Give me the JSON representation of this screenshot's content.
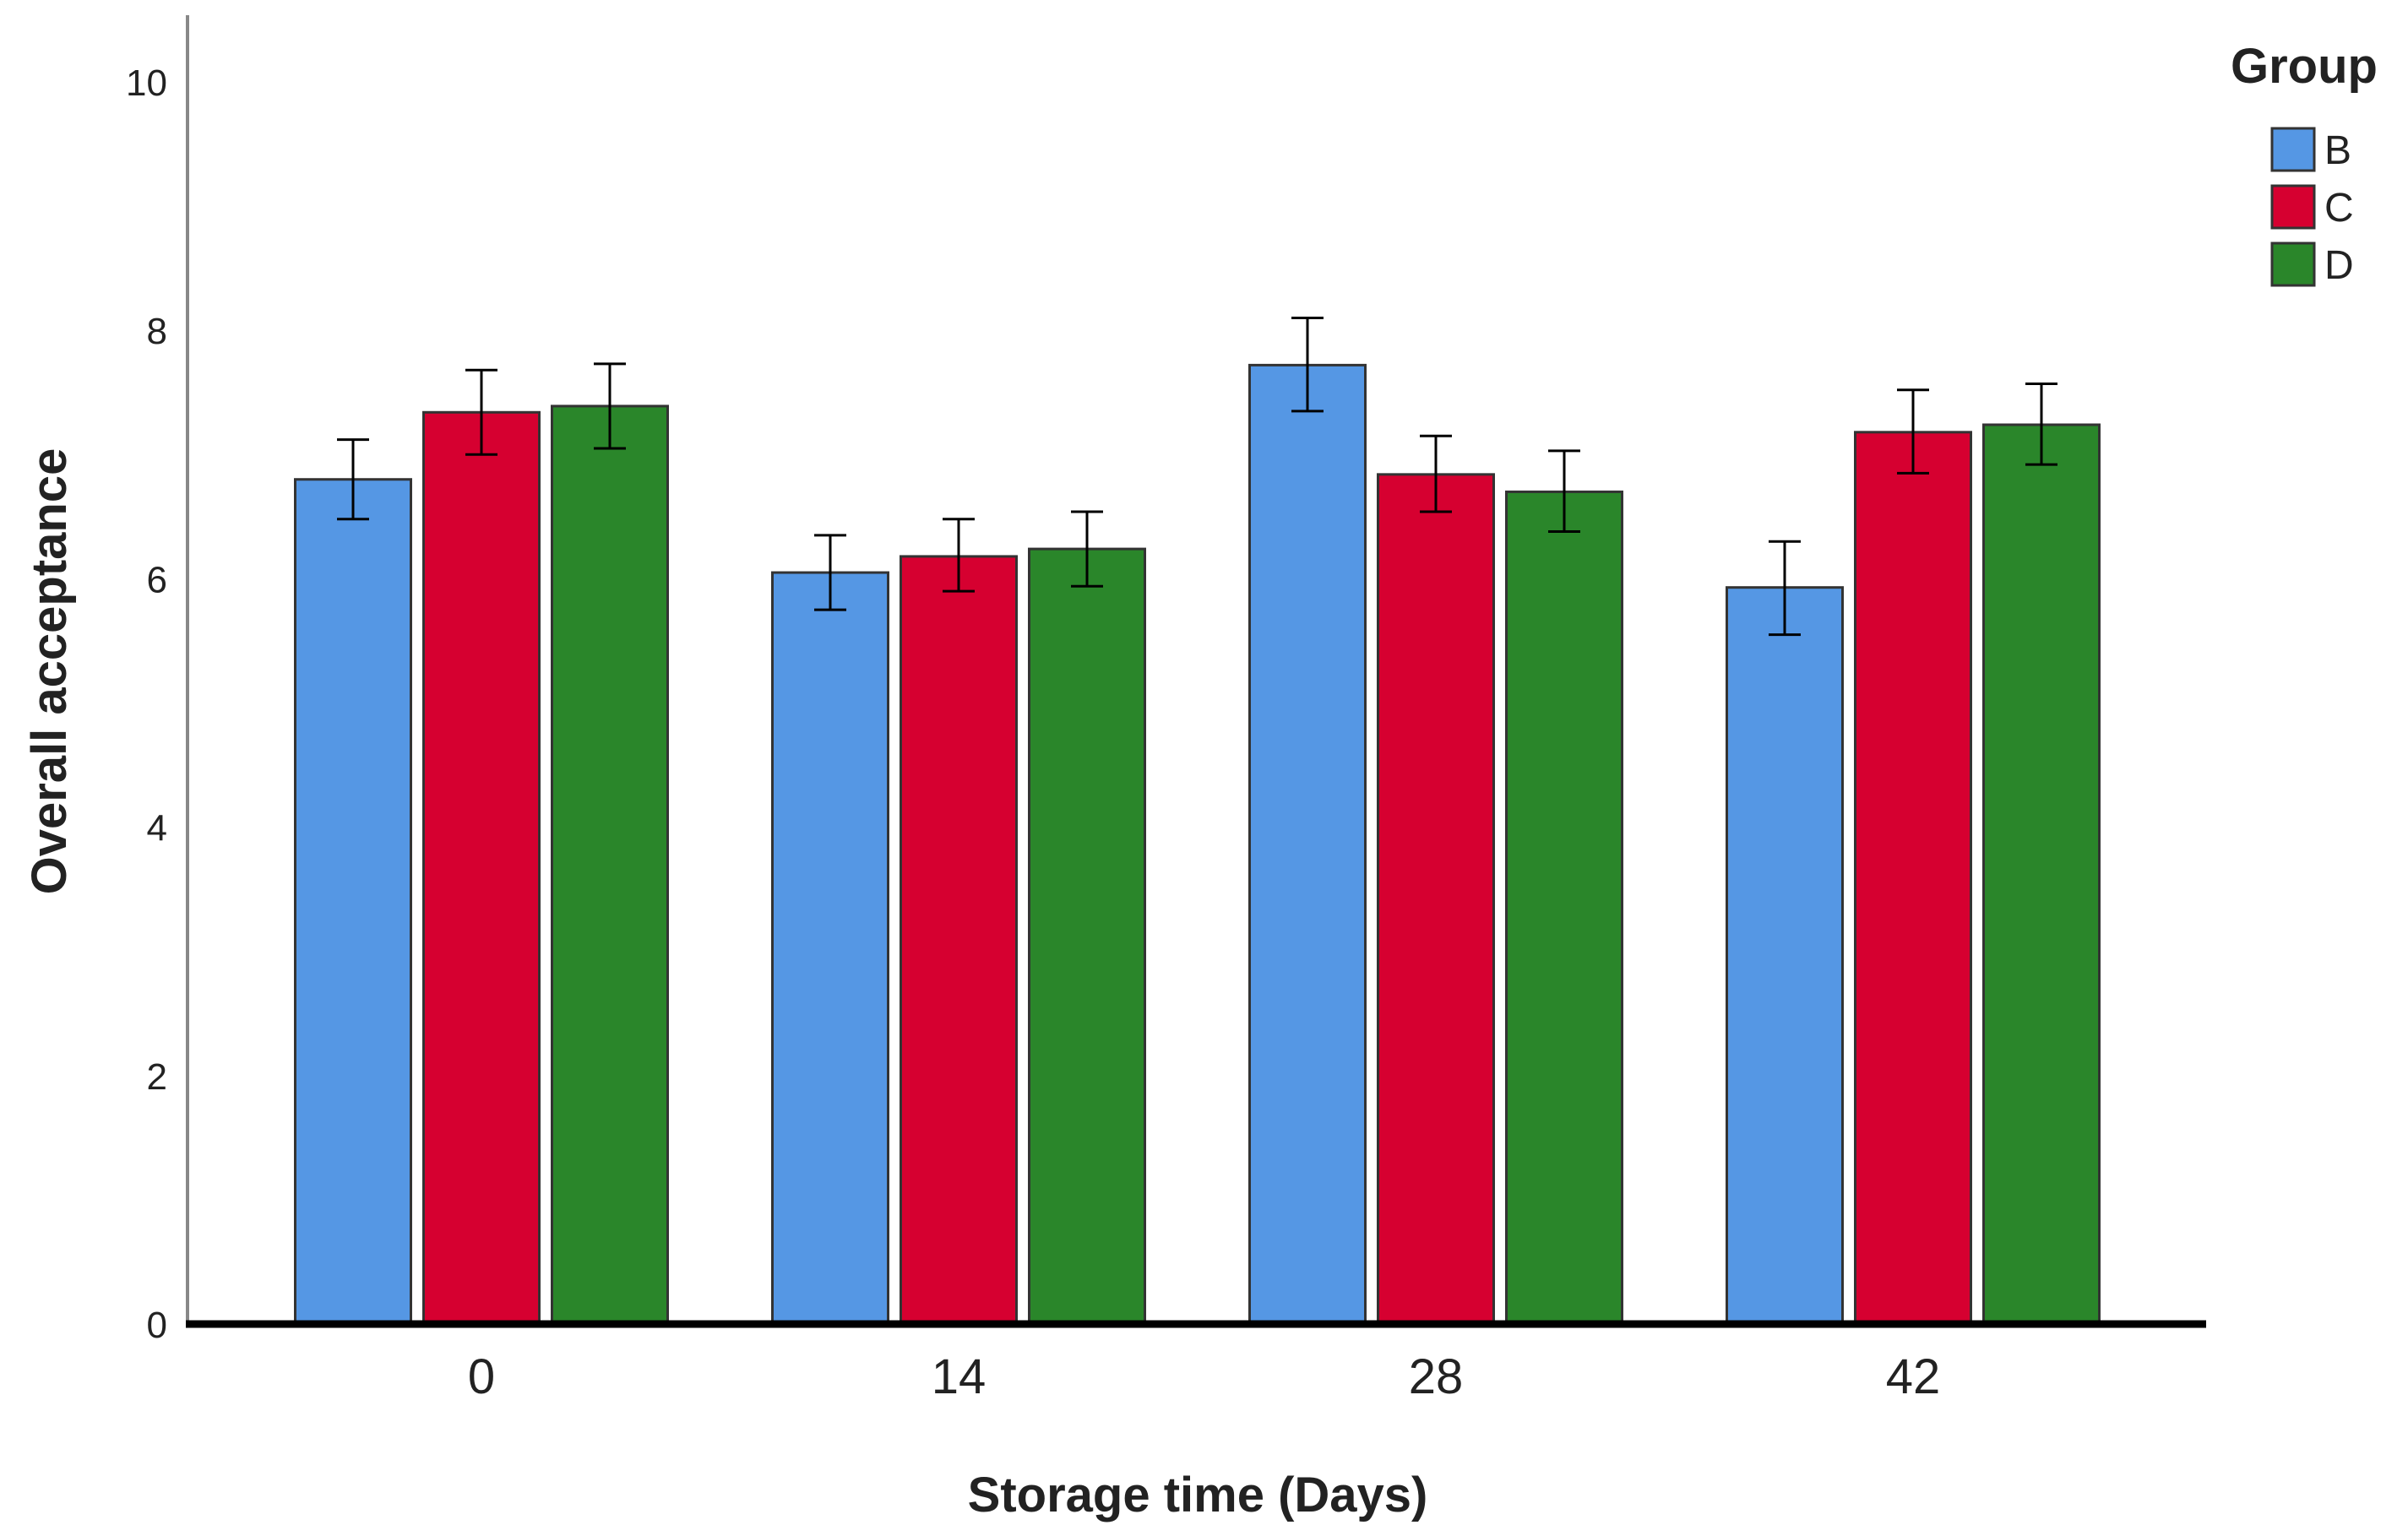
{
  "chart_data": {
    "type": "bar",
    "title": "",
    "xlabel": "Storage time (Days)",
    "ylabel": "Overall acceptance",
    "ylim": [
      0,
      10
    ],
    "yticks": [
      0,
      2,
      4,
      6,
      8,
      10
    ],
    "categories": [
      "0",
      "14",
      "28",
      "42"
    ],
    "series": [
      {
        "name": "B",
        "color": "#5597e4",
        "values": [
          6.8,
          6.05,
          7.72,
          5.93
        ],
        "error_low": [
          6.48,
          5.75,
          7.35,
          5.55
        ],
        "error_high": [
          7.12,
          6.35,
          8.1,
          6.3
        ]
      },
      {
        "name": "C",
        "color": "#d60030",
        "values": [
          7.34,
          6.18,
          6.84,
          7.18
        ],
        "error_low": [
          7.0,
          5.9,
          6.54,
          6.85
        ],
        "error_high": [
          7.68,
          6.48,
          7.15,
          7.52
        ]
      },
      {
        "name": "D",
        "color": "#2a862a",
        "values": [
          7.39,
          6.24,
          6.7,
          7.24
        ],
        "error_low": [
          7.05,
          5.94,
          6.38,
          6.92
        ],
        "error_high": [
          7.73,
          6.54,
          7.03,
          7.57
        ]
      }
    ],
    "legend": {
      "title": "Group",
      "position": "top-right"
    },
    "grid": false
  }
}
